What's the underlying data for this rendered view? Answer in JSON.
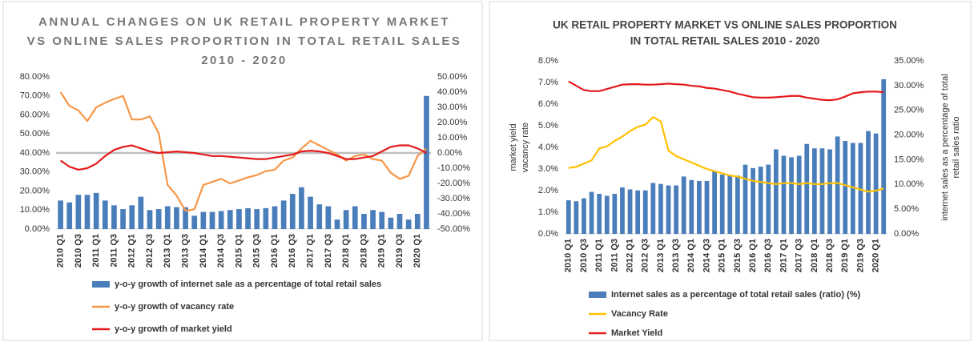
{
  "chart_data": [
    {
      "type": "combo",
      "title": [
        "ANNUAL CHANGES ON UK RETAIL PROPERTY MARKET",
        "VS ONLINE SALES PROPORTION IN TOTAL RETAIL SALES",
        "2010 - 2020"
      ],
      "categories": [
        "2010 Q1",
        null,
        "2010 Q3",
        null,
        "2011 Q1",
        null,
        "2011 Q3",
        null,
        "2012 Q1",
        null,
        "2012 Q3",
        null,
        "2013 Q1",
        null,
        "2013 Q3",
        null,
        "2014 Q1",
        null,
        "2014 Q3",
        null,
        "2015 Q1",
        null,
        "2015 Q3",
        null,
        "2016 Q1",
        null,
        "2016 Q3",
        null,
        "2017 Q1",
        null,
        "2017 Q3",
        null,
        "2018 Q1",
        null,
        "2018 Q3",
        null,
        "2019 Q1",
        null,
        "2019 Q3",
        null,
        "2020 Q1",
        null
      ],
      "ylim": [
        0,
        80
      ],
      "yticks": [
        {
          "value": 0,
          "label": "0.00%"
        },
        {
          "value": 10,
          "label": "10.00%"
        },
        {
          "value": 20,
          "label": "20.00%"
        },
        {
          "value": 30,
          "label": "30.00%"
        },
        {
          "value": 40,
          "label": "40.00%"
        },
        {
          "value": 50,
          "label": "50.00%"
        },
        {
          "value": 60,
          "label": "60.00%"
        },
        {
          "value": 70,
          "label": "70.00%"
        },
        {
          "value": 80,
          "label": "80.00%"
        }
      ],
      "y2lim": [
        -50,
        50
      ],
      "y2ticks": [
        {
          "value": -50,
          "label": "-50.00%"
        },
        {
          "value": -40,
          "label": "-40.00%"
        },
        {
          "value": -30,
          "label": "-30.00%"
        },
        {
          "value": -20,
          "label": "-20.00%"
        },
        {
          "value": -10,
          "label": "-10.00%"
        },
        {
          "value": 0,
          "label": "0.00%"
        },
        {
          "value": 10,
          "label": "10.00%"
        },
        {
          "value": 20,
          "label": "20.00%"
        },
        {
          "value": 30,
          "label": "30.00%"
        },
        {
          "value": 40,
          "label": "40.00%"
        },
        {
          "value": 50,
          "label": "50.00%"
        }
      ],
      "series": [
        {
          "name": "y-o-y growth of internet sale as a percentage of total retail sales",
          "type": "bar",
          "color": "#4a7ebb",
          "values": [
            15,
            14,
            18,
            18,
            19,
            15,
            12.5,
            10.5,
            12.5,
            17,
            10,
            10.5,
            12,
            11.5,
            11.5,
            7,
            9,
            9,
            9.5,
            10,
            10.5,
            11,
            10.5,
            11,
            12,
            15,
            18.5,
            22,
            17,
            13,
            12,
            5,
            10,
            12,
            8,
            10,
            9,
            6,
            8,
            5,
            8,
            70
          ]
        },
        {
          "name": "y-o-y growth of vacancy rate",
          "type": "line",
          "axis": "y2",
          "color": "#f79646",
          "values": [
            40,
            31,
            28,
            21,
            30,
            33,
            35.5,
            37.5,
            22,
            22,
            24,
            13,
            -21,
            -28,
            -38,
            -37,
            -21,
            -19,
            -17,
            -20,
            -18,
            -16,
            -14.5,
            -12,
            -11,
            -5,
            -3,
            3,
            8,
            5,
            2,
            -1,
            -5,
            -2,
            -1,
            -4,
            -5,
            -13,
            -17,
            -15,
            -2,
            3
          ]
        },
        {
          "name": "y-o-y growth of market yield",
          "type": "line",
          "axis": "y2",
          "color": "#e41a1c",
          "values": [
            -5,
            -9,
            -11,
            -10,
            -7,
            -2,
            2,
            4,
            5,
            3,
            1,
            0,
            0.5,
            1,
            0.5,
            0,
            -1,
            -2,
            -2,
            -2.5,
            -3,
            -3.5,
            -4,
            -4,
            -3,
            -2,
            -1,
            1,
            1.5,
            1,
            0,
            -2,
            -4,
            -4,
            -3,
            -2,
            1,
            4,
            5,
            5,
            3,
            0
          ]
        }
      ]
    },
    {
      "type": "combo",
      "title": [
        "UK RETAIL PROPERTY MARKET VS ONLINE SALES PROPORTION",
        "IN TOTAL RETAIL SALES 2010 - 2020"
      ],
      "ylabel": [
        "market yield",
        "vacancy rate"
      ],
      "y2label": [
        "internet sales as a percentage of total",
        "retail sales ratio"
      ],
      "categories": [
        "2010 Q1",
        null,
        "2010 Q3",
        null,
        "2011 Q1",
        null,
        "2011 Q3",
        null,
        "2012 Q1",
        null,
        "2012 Q3",
        null,
        "2013 Q1",
        null,
        "2013 Q3",
        null,
        "2014 Q1",
        null,
        "2014 Q3",
        null,
        "2015 Q1",
        null,
        "2015 Q3",
        null,
        "2016 Q1",
        null,
        "2016 Q3",
        null,
        "2017 Q1",
        null,
        "2017 Q3",
        null,
        "2018 Q1",
        null,
        "2018 Q3",
        null,
        "2019 Q1",
        null,
        "2019 Q3",
        null,
        "2020 Q1",
        null
      ],
      "ylim": [
        0,
        8
      ],
      "yticks": [
        {
          "value": 0,
          "label": "0.0%"
        },
        {
          "value": 1,
          "label": "1.0%"
        },
        {
          "value": 2,
          "label": "2.0%"
        },
        {
          "value": 3,
          "label": "3.0%"
        },
        {
          "value": 4,
          "label": "4.0%"
        },
        {
          "value": 5,
          "label": "5.0%"
        },
        {
          "value": 6,
          "label": "6.0%"
        },
        {
          "value": 7,
          "label": "7.0%"
        },
        {
          "value": 8,
          "label": "8.0%"
        }
      ],
      "y2lim": [
        0,
        35
      ],
      "y2ticks": [
        {
          "value": 0,
          "label": "0.00%"
        },
        {
          "value": 5,
          "label": "5.00%"
        },
        {
          "value": 10,
          "label": "10.00%"
        },
        {
          "value": 15,
          "label": "15.00%"
        },
        {
          "value": 20,
          "label": "20.00%"
        },
        {
          "value": 25,
          "label": "25.00%"
        },
        {
          "value": 30,
          "label": "30.00%"
        },
        {
          "value": 35,
          "label": "35.00%"
        }
      ],
      "series": [
        {
          "name": "Internet sales as a percentage of total retail sales (ratio) (%)",
          "type": "bar",
          "axis": "y2",
          "color": "#4a7ebb",
          "values": [
            6.8,
            6.6,
            7.2,
            8.5,
            8.1,
            7.7,
            8.1,
            9.4,
            9.0,
            8.8,
            8.8,
            10.3,
            10.1,
            9.8,
            9.8,
            11.6,
            10.9,
            10.7,
            10.7,
            12.7,
            12.0,
            11.8,
            11.8,
            14.0,
            13.3,
            13.6,
            14.0,
            17.1,
            15.8,
            15.5,
            15.8,
            18.2,
            17.3,
            17.3,
            17.1,
            19.7,
            18.8,
            18.4,
            18.4,
            20.8,
            20.3,
            31.3
          ]
        },
        {
          "name": "Vacancy Rate",
          "type": "line",
          "color": "#ffc000",
          "values": [
            3.05,
            3.1,
            3.25,
            3.4,
            3.95,
            4.05,
            4.3,
            4.5,
            4.75,
            4.95,
            5.05,
            5.4,
            5.2,
            3.85,
            3.6,
            3.45,
            3.3,
            3.15,
            3.0,
            2.9,
            2.8,
            2.7,
            2.65,
            2.55,
            2.45,
            2.4,
            2.35,
            2.3,
            2.35,
            2.35,
            2.3,
            2.35,
            2.3,
            2.3,
            2.35,
            2.35,
            2.25,
            2.15,
            2.05,
            1.95,
            2.0,
            2.1
          ]
        },
        {
          "name": "Market Yield",
          "type": "line",
          "color": "#e41a1c",
          "values": [
            7.05,
            6.85,
            6.65,
            6.6,
            6.6,
            6.7,
            6.8,
            6.9,
            6.92,
            6.92,
            6.9,
            6.9,
            6.92,
            6.95,
            6.92,
            6.9,
            6.85,
            6.82,
            6.75,
            6.72,
            6.65,
            6.58,
            6.48,
            6.4,
            6.32,
            6.3,
            6.3,
            6.32,
            6.35,
            6.38,
            6.38,
            6.3,
            6.25,
            6.2,
            6.18,
            6.22,
            6.35,
            6.5,
            6.55,
            6.58,
            6.58,
            6.55
          ]
        }
      ]
    }
  ]
}
